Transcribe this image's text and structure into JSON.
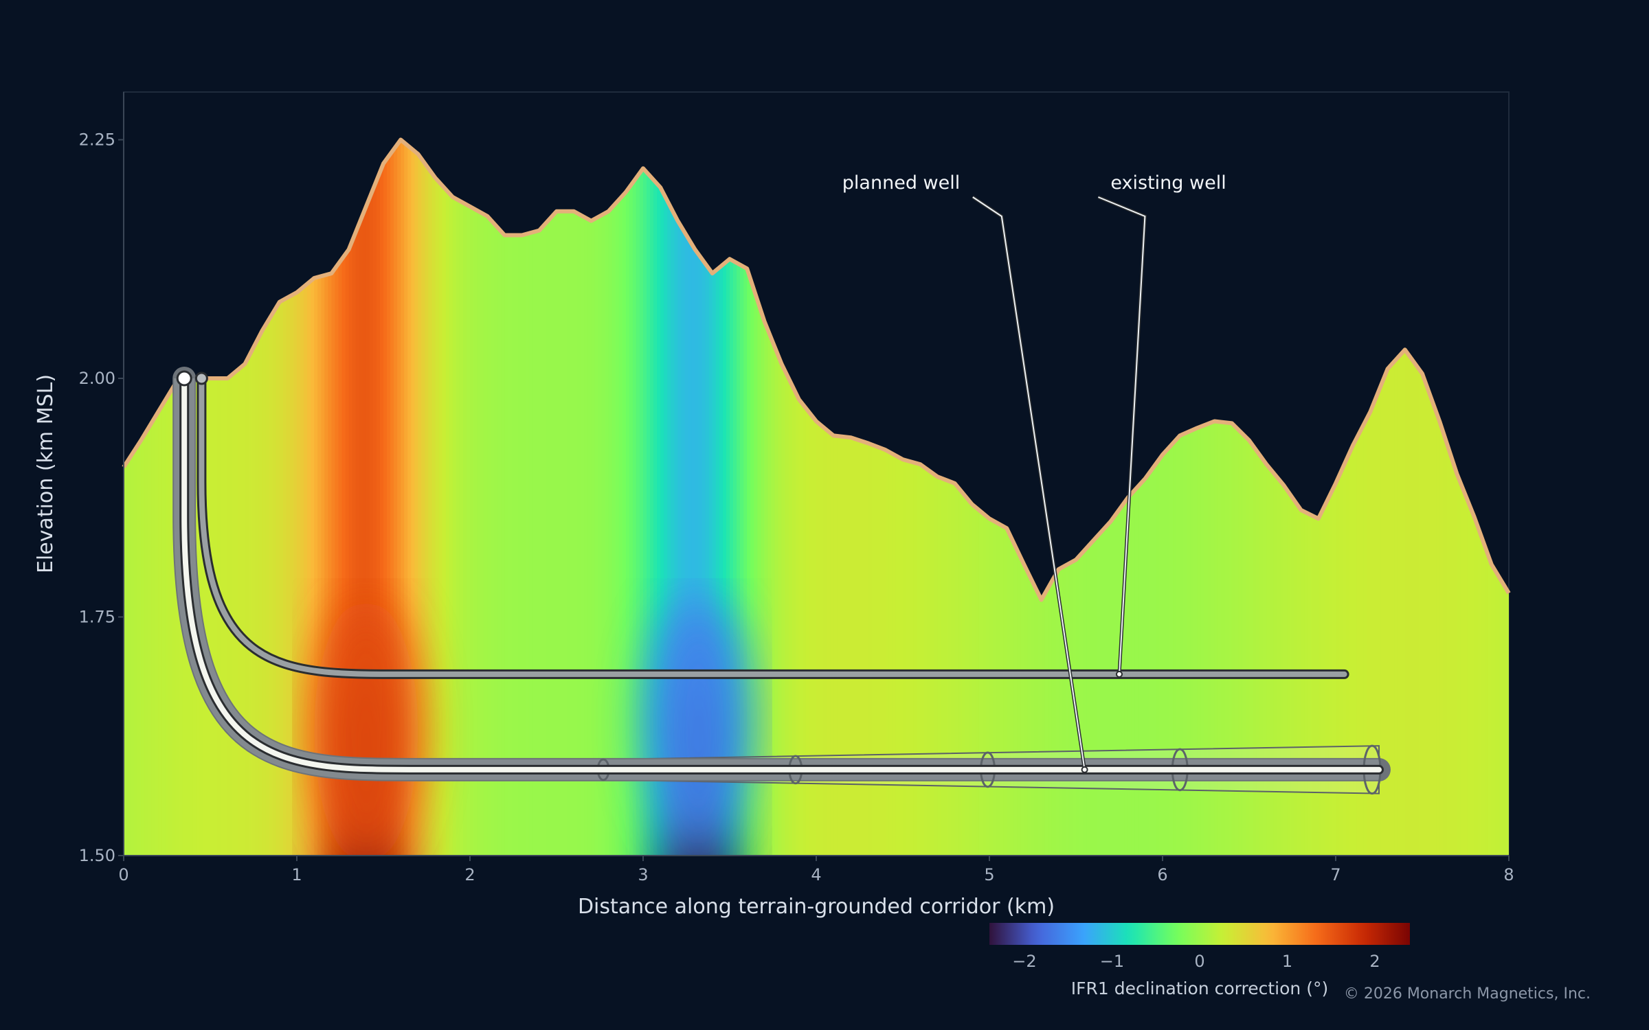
{
  "chart_data": {
    "type": "area",
    "xlabel": "Distance along terrain-grounded corridor (km)",
    "ylabel": "Elevation (km MSL)",
    "xlim": [
      0,
      8
    ],
    "ylim": [
      1.5,
      2.3
    ],
    "x_ticks": [
      "0",
      "1",
      "2",
      "3",
      "4",
      "5",
      "6",
      "7",
      "8"
    ],
    "y_ticks": [
      "1.50",
      "1.75",
      "2.00",
      "2.25"
    ],
    "grid": false,
    "terrain": {
      "x": [
        0,
        0.1,
        0.2,
        0.3,
        0.4,
        0.5,
        0.6,
        0.7,
        0.8,
        0.9,
        1.0,
        1.1,
        1.2,
        1.3,
        1.4,
        1.5,
        1.6,
        1.7,
        1.8,
        1.9,
        2.0,
        2.1,
        2.2,
        2.3,
        2.4,
        2.5,
        2.6,
        2.7,
        2.8,
        2.9,
        3.0,
        3.1,
        3.2,
        3.3,
        3.4,
        3.5,
        3.6,
        3.7,
        3.8,
        3.9,
        4.0,
        4.1,
        4.2,
        4.3,
        4.4,
        4.5,
        4.6,
        4.7,
        4.8,
        4.9,
        5.0,
        5.1,
        5.2,
        5.3,
        5.4,
        5.5,
        5.6,
        5.7,
        5.8,
        5.9,
        6.0,
        6.1,
        6.2,
        6.3,
        6.4,
        6.5,
        6.6,
        6.7,
        6.8,
        6.9,
        7.0,
        7.1,
        7.2,
        7.3,
        7.4,
        7.5,
        7.6,
        7.7,
        7.8,
        7.9,
        8.0
      ],
      "elevation": [
        1.907,
        1.935,
        1.965,
        1.995,
        2.0,
        2.0,
        2.0,
        2.015,
        2.05,
        2.08,
        2.09,
        2.105,
        2.11,
        2.135,
        2.18,
        2.225,
        2.25,
        2.235,
        2.21,
        2.19,
        2.18,
        2.17,
        2.15,
        2.15,
        2.155,
        2.175,
        2.175,
        2.165,
        2.175,
        2.195,
        2.22,
        2.2,
        2.165,
        2.135,
        2.11,
        2.125,
        2.115,
        2.06,
        2.015,
        1.978,
        1.955,
        1.94,
        1.938,
        1.932,
        1.925,
        1.915,
        1.91,
        1.897,
        1.89,
        1.868,
        1.853,
        1.843,
        1.805,
        1.768,
        1.8,
        1.81,
        1.83,
        1.85,
        1.875,
        1.895,
        1.92,
        1.94,
        1.948,
        1.955,
        1.953,
        1.935,
        1.91,
        1.888,
        1.862,
        1.853,
        1.89,
        1.93,
        1.965,
        2.01,
        2.03,
        2.005,
        1.955,
        1.9,
        1.855,
        1.805,
        1.775
      ]
    },
    "declination_field": {
      "colorbar_label": "IFR1 declination correction (°)",
      "range": [
        -2.4,
        2.4
      ],
      "ticks": [
        "−2",
        "−1",
        "0",
        "1",
        "2"
      ],
      "colors": [
        "#30123b",
        "#4662d8",
        "#3ba1fd",
        "#1ae4b6",
        "#72fe5e",
        "#c8ef34",
        "#faba39",
        "#f66b19",
        "#ca2a04",
        "#7a0403"
      ]
    },
    "series": [
      {
        "name": "planned well",
        "kickoff_x": 0.35,
        "surface_y": 2.0,
        "build_end_x": 1.7,
        "lateral_y": 1.59,
        "td_x": 7.25,
        "uncertainty_half_width_end": 0.025,
        "color": "#f4f6ef"
      },
      {
        "name": "existing well",
        "kickoff_x": 0.45,
        "surface_y": 2.0,
        "build_end_x": 1.6,
        "lateral_y": 1.69,
        "td_x": 7.05,
        "color": "#9aa0a3"
      }
    ],
    "annotations": [
      {
        "text": "planned well",
        "text_x": 4.15,
        "text_y": 2.2,
        "target_x": 5.55,
        "target_y": 1.59
      },
      {
        "text": "existing well",
        "text_x": 5.7,
        "text_y": 2.2,
        "target_x": 5.75,
        "target_y": 1.69
      }
    ]
  },
  "footer": {
    "copyright": "© 2026 Monarch Magnetics, Inc."
  }
}
